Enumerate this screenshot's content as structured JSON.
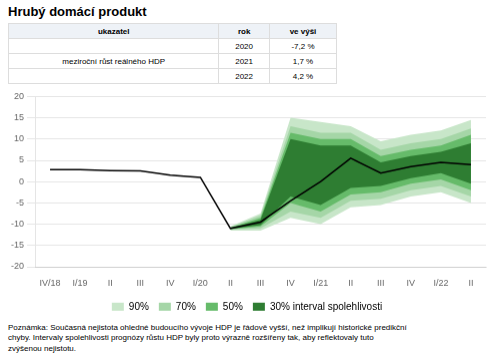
{
  "chart_data": {
    "type": "line",
    "title": "Hrubý domácí produkt",
    "table": {
      "columns": [
        "ukazatel",
        "rok",
        "ve výši"
      ],
      "row_label": "meziroční růst reálného HDP",
      "rows": [
        [
          "2020",
          "-7,2 %"
        ],
        [
          "2021",
          "1,7 %"
        ],
        [
          "2022",
          "4,2 %"
        ]
      ]
    },
    "categories": [
      "IV/18",
      "I/19",
      "II",
      "III",
      "IV",
      "I/20",
      "II",
      "III",
      "IV",
      "I/21",
      "II",
      "III",
      "IV",
      "I/22",
      "II"
    ],
    "series": [
      {
        "color": "#000000",
        "values": [
          2.8,
          2.8,
          2.6,
          2.5,
          1.5,
          1.0,
          -11.0,
          -9.5,
          -4.5,
          0.0,
          5.5,
          2.0,
          3.5,
          4.5,
          4.0
        ]
      }
    ],
    "bands": [
      {
        "name": "90%",
        "color": "#c8e6c9",
        "lower": [
          null,
          null,
          null,
          null,
          null,
          null,
          -11.5,
          -11.5,
          -8.5,
          -10.0,
          -6.0,
          -5.5,
          -3.5,
          -2.5,
          -5.0
        ],
        "upper": [
          null,
          null,
          null,
          null,
          null,
          null,
          -10.5,
          -7.5,
          15.0,
          14.0,
          13.0,
          9.5,
          11.0,
          12.0,
          14.5
        ]
      },
      {
        "name": "70%",
        "color": "#a5d6a7",
        "lower": [
          null,
          null,
          null,
          null,
          null,
          null,
          -11.3,
          -11.0,
          -7.0,
          -8.5,
          -4.5,
          -4.0,
          -2.0,
          -1.0,
          -3.5
        ],
        "upper": [
          null,
          null,
          null,
          null,
          null,
          null,
          -10.7,
          -8.0,
          13.0,
          11.5,
          11.5,
          7.5,
          9.0,
          10.0,
          12.5
        ]
      },
      {
        "name": "50%",
        "color": "#66bb6a",
        "lower": [
          null,
          null,
          null,
          null,
          null,
          null,
          -11.2,
          -10.5,
          -5.0,
          -7.0,
          -3.0,
          -2.5,
          -0.5,
          0.5,
          -2.0
        ],
        "upper": [
          null,
          null,
          null,
          null,
          null,
          null,
          -10.8,
          -8.5,
          11.5,
          10.0,
          10.0,
          6.0,
          7.5,
          8.5,
          11.0
        ]
      },
      {
        "name": "30% interval spolehlivosti",
        "color": "#2e7d32",
        "lower": [
          null,
          null,
          null,
          null,
          null,
          null,
          -11.1,
          -10.2,
          -3.5,
          -5.5,
          -1.5,
          -1.0,
          0.8,
          2.0,
          -0.5
        ],
        "upper": [
          null,
          null,
          null,
          null,
          null,
          null,
          -10.9,
          -9.0,
          10.0,
          8.5,
          8.5,
          4.5,
          6.0,
          7.0,
          9.0
        ]
      }
    ],
    "ylim": [
      -20,
      20
    ],
    "yticks": [
      -20,
      -15,
      -10,
      -5,
      0,
      5,
      10,
      15,
      20
    ],
    "grid": "y",
    "legend": "bottom",
    "annotations": [
      "Poznámka: Současná nejistota ohledné budoucího vývoje HDP je řádově vyšší, než implikují historické predikční\nchyby. Intervaly spolehlivosti prognózy růstu HDP byly proto výrazně rozšířeny tak, aby reflektovaly tuto\nzvýšenou nejistotu."
    ]
  }
}
